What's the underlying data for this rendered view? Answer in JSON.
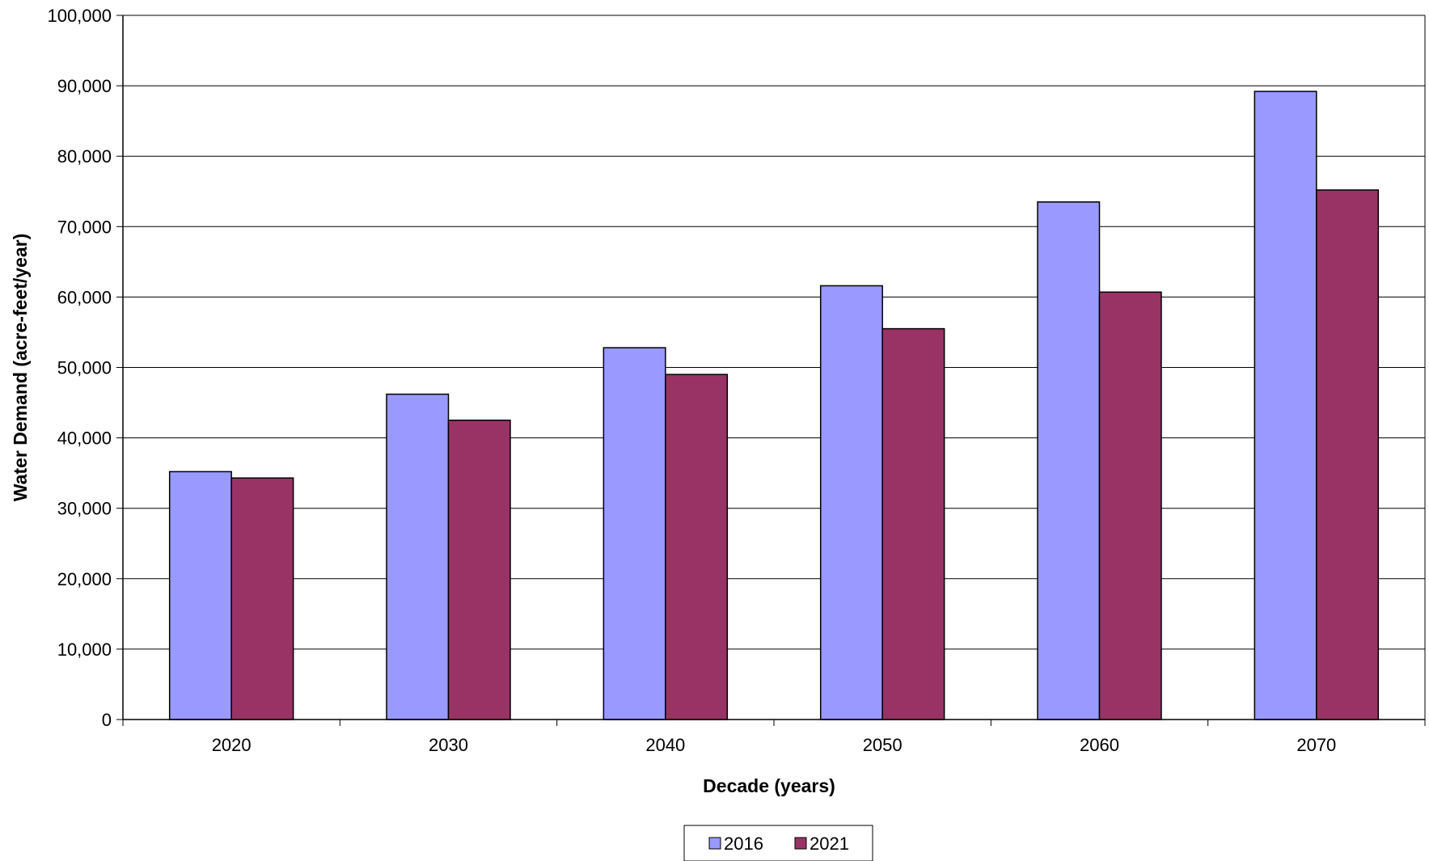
{
  "chart_data": {
    "type": "bar",
    "categories": [
      "2020",
      "2030",
      "2040",
      "2050",
      "2060",
      "2070"
    ],
    "series": [
      {
        "name": "2016",
        "color": "#9999ff",
        "values": [
          35200,
          46200,
          52800,
          61600,
          73500,
          89200
        ]
      },
      {
        "name": "2021",
        "color": "#993366",
        "values": [
          34300,
          42500,
          49000,
          55500,
          60700,
          75200
        ]
      }
    ],
    "title": "",
    "xlabel": "Decade (years)",
    "ylabel": "Water Demand (acre-feet/year)",
    "ylim": [
      0,
      100000
    ],
    "yticks": [
      0,
      10000,
      20000,
      30000,
      40000,
      50000,
      60000,
      70000,
      80000,
      90000,
      100000
    ],
    "ytick_labels": [
      "0",
      "10,000",
      "20,000",
      "30,000",
      "40,000",
      "50,000",
      "60,000",
      "70,000",
      "80,000",
      "90,000",
      "100,000"
    ],
    "grid": true,
    "legend_position": "bottom-center"
  }
}
